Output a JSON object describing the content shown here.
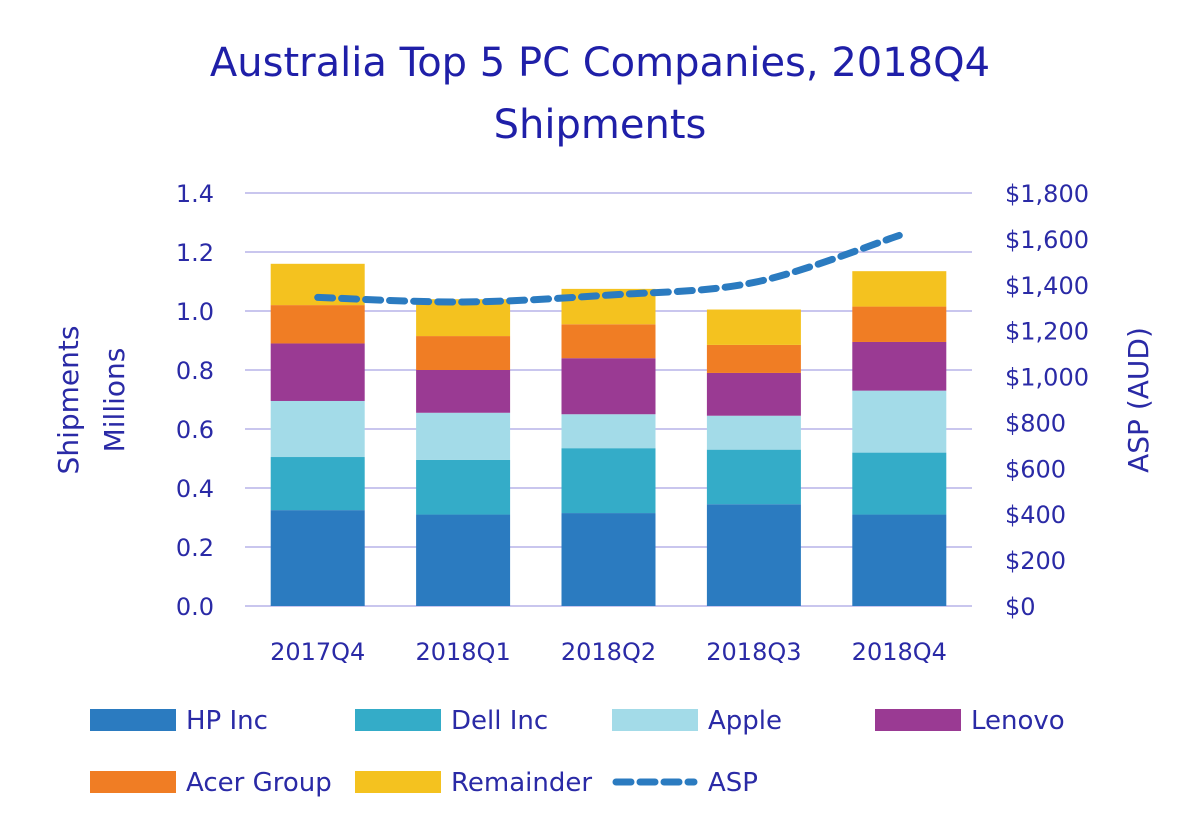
{
  "chart_data": {
    "type": "bar",
    "stacked": true,
    "title_line1": "Australia Top 5 PC Companies, 2018Q4",
    "title_line2": "Shipments",
    "categories": [
      "2017Q4",
      "2018Q1",
      "2018Q2",
      "2018Q3",
      "2018Q4"
    ],
    "ylabel_line1": "Shipments",
    "ylabel_line2": "Millions",
    "y2label": "ASP (AUD)",
    "ylim": [
      0,
      1.4
    ],
    "y2lim": [
      0,
      1800
    ],
    "y_ticks": [
      "0.0",
      "0.2",
      "0.4",
      "0.6",
      "0.8",
      "1.0",
      "1.2",
      "1.4"
    ],
    "y2_ticks": [
      "$0",
      "$200",
      "$400",
      "$600",
      "$800",
      "$1,000",
      "$1,200",
      "$1,400",
      "$1,600",
      "$1,800"
    ],
    "grid": true,
    "legend_position": "bottom",
    "series": [
      {
        "name": "HP Inc",
        "color": "#2b7bc0",
        "values": [
          0.325,
          0.31,
          0.315,
          0.345,
          0.31
        ]
      },
      {
        "name": "Dell Inc",
        "color": "#34acc8",
        "values": [
          0.18,
          0.185,
          0.22,
          0.185,
          0.21
        ]
      },
      {
        "name": "Apple",
        "color": "#a3dbe8",
        "values": [
          0.19,
          0.16,
          0.115,
          0.115,
          0.21
        ]
      },
      {
        "name": "Lenovo",
        "color": "#9a3a93",
        "values": [
          0.195,
          0.145,
          0.19,
          0.145,
          0.165
        ]
      },
      {
        "name": "Acer Group",
        "color": "#f07d24",
        "values": [
          0.13,
          0.115,
          0.115,
          0.095,
          0.12
        ]
      },
      {
        "name": "Remainder",
        "color": "#f4c21f",
        "values": [
          0.14,
          0.125,
          0.12,
          0.12,
          0.12
        ]
      }
    ],
    "line_series": {
      "name": "ASP",
      "color": "#2b7bc0",
      "values": [
        1345,
        1325,
        1355,
        1410,
        1615
      ],
      "axis": "y2"
    }
  }
}
